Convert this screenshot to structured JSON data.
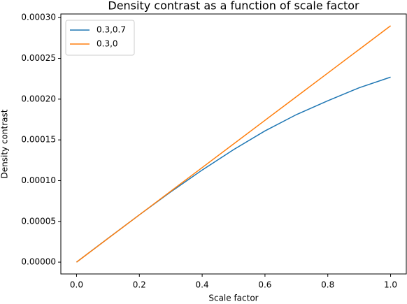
{
  "chart_data": {
    "type": "line",
    "title": "Density contrast as a function of scale factor",
    "xlabel": "Scale factor",
    "ylabel": "Density contrast",
    "x": [
      0,
      0.1,
      0.2,
      0.3,
      0.4,
      0.5,
      0.6,
      0.7,
      0.8,
      0.9,
      1.0
    ],
    "series": [
      {
        "name": "0.3,0.7",
        "color": "#1f77b4",
        "values": [
          0,
          2.91e-05,
          5.8e-05,
          8.62e-05,
          0.000113,
          0.000138,
          0.000161,
          0.000181,
          0.000198,
          0.000214,
          0.000227
        ]
      },
      {
        "name": "0.3,0",
        "color": "#ff7f0e",
        "values": [
          0,
          2.9e-05,
          5.8e-05,
          8.7e-05,
          0.000116,
          0.000145,
          0.000174,
          0.000203,
          0.000232,
          0.000261,
          0.00029
        ]
      }
    ],
    "xlim": [
      -0.05,
      1.05
    ],
    "ylim": [
      -1.45e-05,
      0.0003045
    ],
    "xticks": [
      {
        "value": 0,
        "label": "0.0"
      },
      {
        "value": 0.2,
        "label": "0.2"
      },
      {
        "value": 0.4,
        "label": "0.4"
      },
      {
        "value": 0.6,
        "label": "0.6"
      },
      {
        "value": 0.8,
        "label": "0.8"
      },
      {
        "value": 1.0,
        "label": "1.0"
      }
    ],
    "yticks": [
      {
        "value": 0,
        "label": "0.00000"
      },
      {
        "value": 5e-05,
        "label": "0.00005"
      },
      {
        "value": 0.0001,
        "label": "0.00010"
      },
      {
        "value": 0.00015,
        "label": "0.00015"
      },
      {
        "value": 0.0002,
        "label": "0.00020"
      },
      {
        "value": 0.00025,
        "label": "0.00025"
      },
      {
        "value": 0.0003,
        "label": "0.00030"
      }
    ],
    "legend": "upper left",
    "grid": false
  }
}
